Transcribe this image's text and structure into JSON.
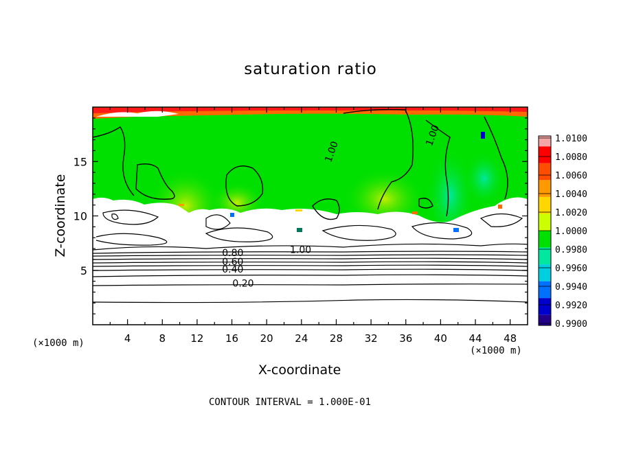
{
  "chart_data": {
    "type": "heatmap",
    "title": "saturation ratio",
    "xlabel": "X-coordinate",
    "ylabel": "Z-coordinate",
    "x_unit": "(×1000 m)",
    "y_unit": "(×1000 m)",
    "xlim": [
      0,
      50
    ],
    "ylim": [
      0,
      20
    ],
    "x_ticks": [
      "4",
      "8",
      "12",
      "16",
      "20",
      "24",
      "28",
      "32",
      "36",
      "40",
      "44",
      "48"
    ],
    "y_ticks": [
      "5",
      "10",
      "15"
    ],
    "contour_interval_text": "CONTOUR INTERVAL = 1.000E-01",
    "contour_labels": [
      {
        "text": "0.20",
        "x": 17.3,
        "y": 3.5
      },
      {
        "text": "0.40",
        "x": 16.1,
        "y": 4.8
      },
      {
        "text": "0.60",
        "x": 16.1,
        "y": 5.5
      },
      {
        "text": "0.80",
        "x": 16.1,
        "y": 6.3
      },
      {
        "text": "1.00",
        "x": 23.9,
        "y": 6.6
      },
      {
        "text": "1.00",
        "x": 27.8,
        "y": 15.8
      },
      {
        "text": "1.00",
        "x": 39.4,
        "y": 17.3
      }
    ],
    "colorbar": {
      "labels": [
        "1.0100",
        "1.0080",
        "1.0060",
        "1.0040",
        "1.0020",
        "1.0000",
        "0.9980",
        "0.9960",
        "0.9940",
        "0.9920",
        "0.9900"
      ],
      "colors": [
        "#f4a6a6",
        "#ff0000",
        "#ff4d00",
        "#ff9900",
        "#ffd700",
        "#ccff00",
        "#00e000",
        "#00e8a0",
        "#00cfe0",
        "#0070ff",
        "#0000cc",
        "#220088"
      ]
    }
  }
}
